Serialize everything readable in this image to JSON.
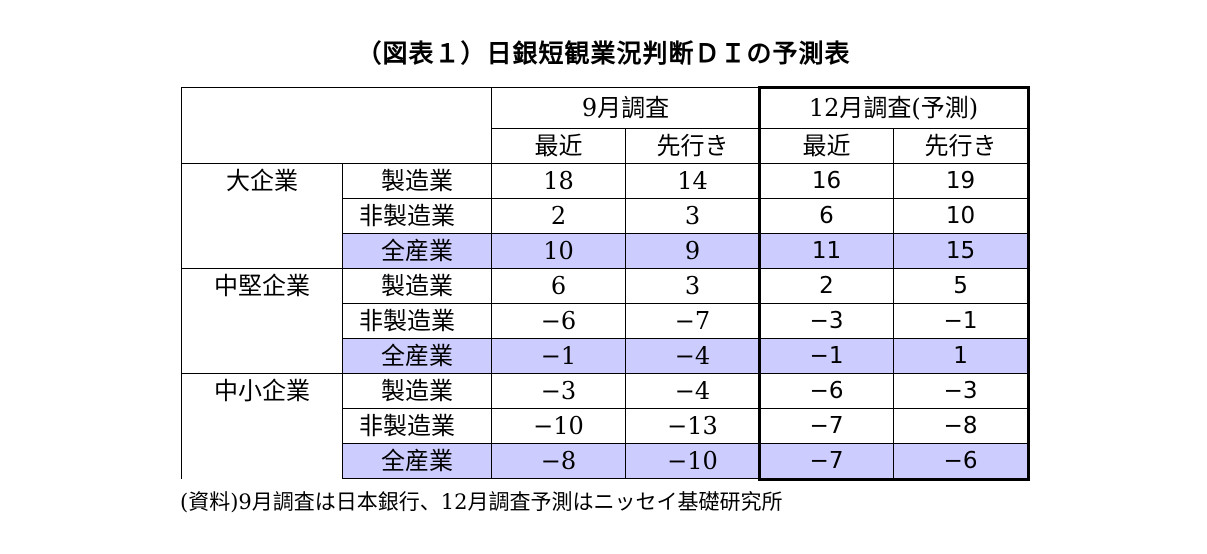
{
  "title": "（図表１）日銀短観業況判断ＤＩの予測表",
  "header": {
    "sep_label": "9月調査",
    "dec_label": "12月調査(予測)",
    "recent": "最近",
    "forecast": "先行き"
  },
  "groups": [
    {
      "label": "大企業",
      "rows": [
        {
          "label": "製造業",
          "sep_recent": "18",
          "sep_forecast": "14",
          "dec_recent": "16",
          "dec_forecast": "19"
        },
        {
          "label": "非製造業",
          "sep_recent": "2",
          "sep_forecast": "3",
          "dec_recent": "6",
          "dec_forecast": "10"
        },
        {
          "label": "全産業",
          "sep_recent": "10",
          "sep_forecast": "9",
          "dec_recent": "11",
          "dec_forecast": "15"
        }
      ]
    },
    {
      "label": "中堅企業",
      "rows": [
        {
          "label": "製造業",
          "sep_recent": "6",
          "sep_forecast": "3",
          "dec_recent": "2",
          "dec_forecast": "5"
        },
        {
          "label": "非製造業",
          "sep_recent": "−6",
          "sep_forecast": "−7",
          "dec_recent": "−3",
          "dec_forecast": "−1"
        },
        {
          "label": "全産業",
          "sep_recent": "−1",
          "sep_forecast": "−4",
          "dec_recent": "−1",
          "dec_forecast": "1"
        }
      ]
    },
    {
      "label": "中小企業",
      "rows": [
        {
          "label": "製造業",
          "sep_recent": "−3",
          "sep_forecast": "−4",
          "dec_recent": "−6",
          "dec_forecast": "−3"
        },
        {
          "label": "非製造業",
          "sep_recent": "−10",
          "sep_forecast": "−13",
          "dec_recent": "−7",
          "dec_forecast": "−8"
        },
        {
          "label": "全産業",
          "sep_recent": "−8",
          "sep_forecast": "−10",
          "dec_recent": "−7",
          "dec_forecast": "−6"
        }
      ]
    }
  ],
  "source": "(資料)9月調査は日本銀行、12月調査予測はニッセイ基礎研究所",
  "colors": {
    "highlight": "#ccccff"
  }
}
